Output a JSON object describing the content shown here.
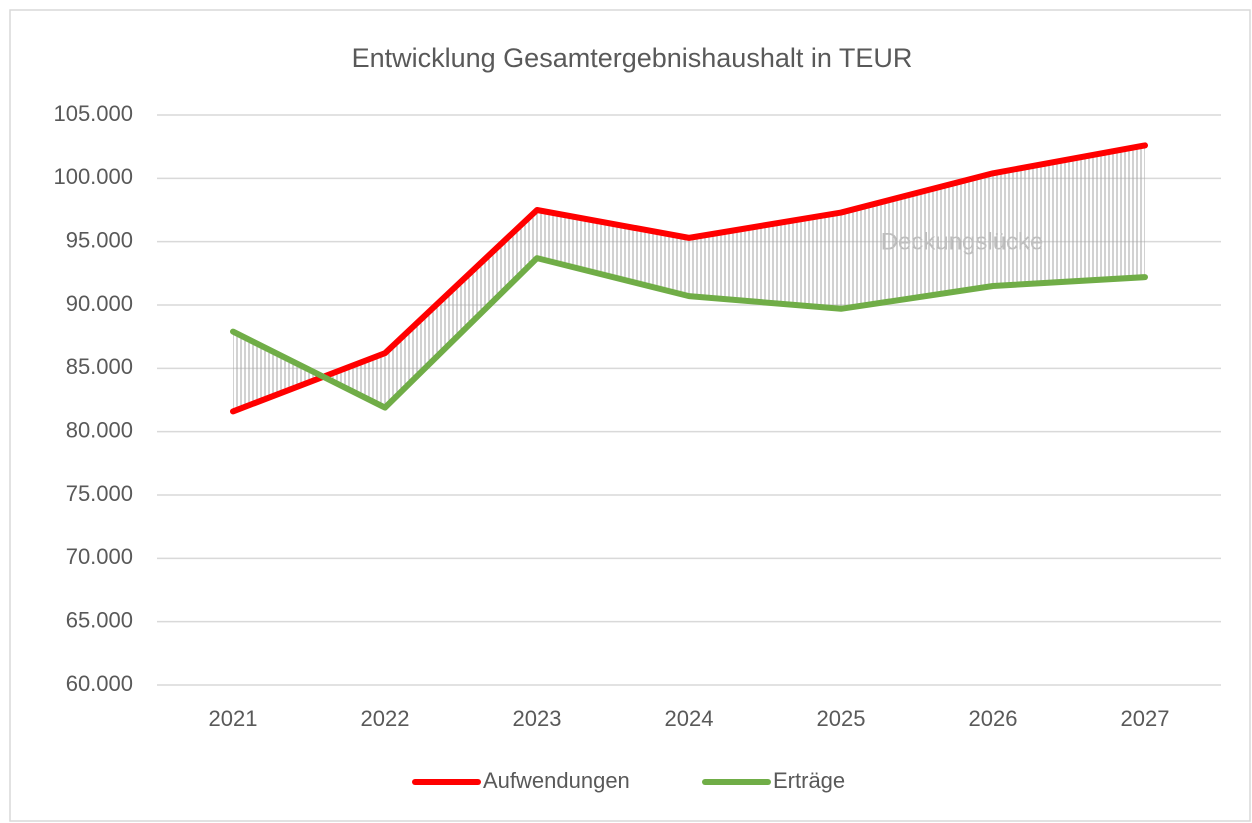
{
  "chart_data": {
    "type": "line",
    "title": "Entwicklung Gesamtergebnishaushalt in TEUR",
    "categories": [
      "2021",
      "2022",
      "2023",
      "2024",
      "2025",
      "2026",
      "2027"
    ],
    "series": [
      {
        "name": "Aufwendungen",
        "color": "#ff0000",
        "values": [
          81600,
          86200,
          97500,
          95300,
          97300,
          100400,
          102600
        ]
      },
      {
        "name": "Erträge",
        "color": "#70ad47",
        "values": [
          87900,
          81900,
          93700,
          90700,
          89700,
          91500,
          92200
        ]
      }
    ],
    "annotation": "Deckungslücke",
    "ylim": [
      60000,
      105000
    ],
    "yticks": [
      {
        "value": 60000,
        "label": "60.000"
      },
      {
        "value": 65000,
        "label": "65.000"
      },
      {
        "value": 70000,
        "label": "70.000"
      },
      {
        "value": 75000,
        "label": "75.000"
      },
      {
        "value": 80000,
        "label": "80.000"
      },
      {
        "value": 85000,
        "label": "85.000"
      },
      {
        "value": 90000,
        "label": "90.000"
      },
      {
        "value": 95000,
        "label": "95.000"
      },
      {
        "value": 100000,
        "label": "100.000"
      },
      {
        "value": 105000,
        "label": "105.000"
      }
    ],
    "grid": true,
    "legend": "bottom"
  }
}
